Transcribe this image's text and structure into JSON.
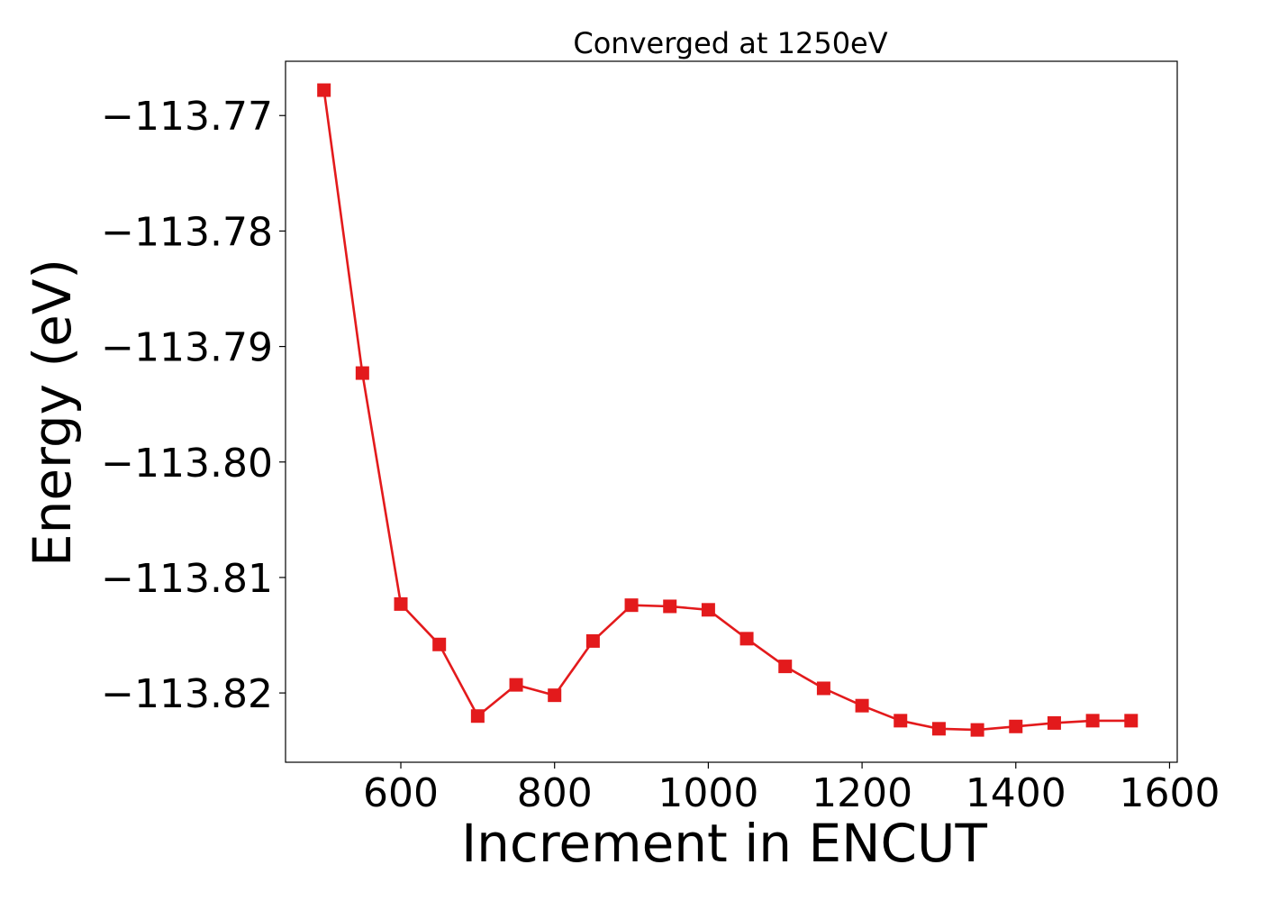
{
  "chart_data": {
    "type": "line",
    "title": "Converged at 1250eV",
    "xlabel": "Increment in ENCUT",
    "ylabel": "Energy (eV)",
    "xlim": [
      450,
      1610
    ],
    "ylim": [
      -113.826,
      -113.7653
    ],
    "xticks": [
      600,
      800,
      1000,
      1200,
      1400,
      1600
    ],
    "yticks": [
      -113.77,
      -113.78,
      -113.79,
      -113.8,
      -113.81,
      -113.82
    ],
    "ytick_labels": [
      "−113.77",
      "−113.78",
      "−113.79",
      "−113.80",
      "−113.81",
      "−113.82"
    ],
    "grid": false,
    "legend": "none",
    "colors": {
      "series": "#e31a1c"
    },
    "series": [
      {
        "marker": "square",
        "x": [
          500,
          550,
          600,
          650,
          700,
          750,
          800,
          850,
          900,
          950,
          1000,
          1050,
          1100,
          1150,
          1200,
          1250,
          1300,
          1350,
          1400,
          1450,
          1500,
          1550
        ],
        "y": [
          -113.7678,
          -113.7923,
          -113.8123,
          -113.8158,
          -113.822,
          -113.8193,
          -113.8202,
          -113.8155,
          -113.8124,
          -113.8125,
          -113.8128,
          -113.8153,
          -113.8177,
          -113.8196,
          -113.8211,
          -113.8224,
          -113.8231,
          -113.8232,
          -113.8229,
          -113.8226,
          -113.8224,
          -113.8224
        ]
      }
    ]
  }
}
